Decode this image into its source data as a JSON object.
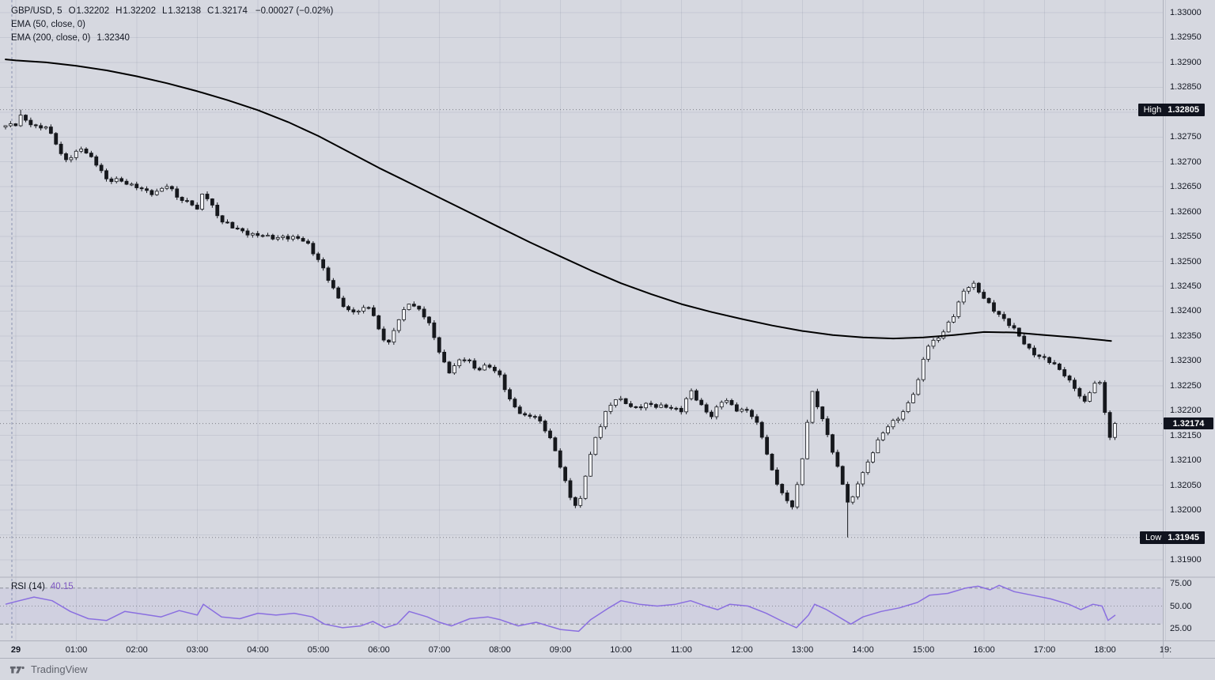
{
  "header": {
    "symbol": "GBP/USD, 5",
    "ohlc": {
      "o_label": "O",
      "o": "1.32202",
      "h_label": "H",
      "h": "1.32202",
      "l_label": "L",
      "l": "1.32138",
      "c_label": "C",
      "c": "1.32174",
      "change": "−0.00027 (−0.02%)"
    },
    "indicators": [
      {
        "name": "EMA (50, close, 0)",
        "value": ""
      },
      {
        "name": "EMA (200, close, 0)",
        "value": "1.32340"
      }
    ]
  },
  "rsi_legend": {
    "name": "RSI (14)",
    "value": "40.15"
  },
  "badges": {
    "high_label": "High",
    "high_value": "1.32805",
    "low_label": "Low",
    "low_value": "1.31945",
    "last_price": "1.32174"
  },
  "price_axis": {
    "labels": [
      "1.33000",
      "1.32950",
      "1.32900",
      "1.32850",
      "1.32800",
      "1.32750",
      "1.32700",
      "1.32650",
      "1.32600",
      "1.32550",
      "1.32500",
      "1.32450",
      "1.32400",
      "1.32350",
      "1.32300",
      "1.32250",
      "1.32200",
      "1.32150",
      "1.32100",
      "1.32050",
      "1.32000",
      "1.31950",
      "1.31900"
    ]
  },
  "rsi_axis": {
    "labels": [
      "75.00",
      "50.00",
      "25.00"
    ],
    "values": [
      75,
      50,
      25
    ]
  },
  "time_axis": {
    "labels": [
      {
        "t": 0,
        "text": "29",
        "bold": true
      },
      {
        "t": 1,
        "text": "01:00"
      },
      {
        "t": 2,
        "text": "02:00"
      },
      {
        "t": 3,
        "text": "03:00"
      },
      {
        "t": 4,
        "text": "04:00"
      },
      {
        "t": 5,
        "text": "05:00"
      },
      {
        "t": 6,
        "text": "06:00"
      },
      {
        "t": 7,
        "text": "07:00"
      },
      {
        "t": 8,
        "text": "08:00"
      },
      {
        "t": 9,
        "text": "09:00"
      },
      {
        "t": 10,
        "text": "10:00"
      },
      {
        "t": 11,
        "text": "11:00"
      },
      {
        "t": 12,
        "text": "12:00"
      },
      {
        "t": 13,
        "text": "13:00"
      },
      {
        "t": 14,
        "text": "14:00"
      },
      {
        "t": 15,
        "text": "15:00"
      },
      {
        "t": 16,
        "text": "16:00"
      },
      {
        "t": 17,
        "text": "17:00"
      },
      {
        "t": 18,
        "text": "18:00"
      },
      {
        "t": 19,
        "text": "19:"
      }
    ]
  },
  "watermark": {
    "text": "TradingView"
  },
  "colors": {
    "background": "#d6d8e0",
    "grid": "rgba(94,102,126,0.13)",
    "border": "#aeb1bc",
    "candle": "#16181d",
    "candle_up_fill": "#f4f5f8",
    "ema200": "#000000",
    "rsi_line": "#8a6fe0",
    "rsi_band_fill": "rgba(138,111,224,0.08)",
    "rsi_band_line": "#8a8d98",
    "dotted_level": "rgba(22,24,32,0.45)",
    "session_line": "rgba(74,90,138,0.55)",
    "badge_bg": "#10131e",
    "axis_text": "#131722",
    "rsi_value": "#7e57c2"
  },
  "chart_data": {
    "type": "candlestick",
    "symbol": "GBP/USD",
    "interval_minutes": 5,
    "date": "29",
    "ohlc_last": {
      "open": 1.32202,
      "high": 1.32202,
      "low": 1.32138,
      "close": 1.32174,
      "change": -0.00027,
      "change_pct": -0.02
    },
    "session_high": 1.32805,
    "session_low": 1.31945,
    "ema200_last": 1.3234,
    "rsi_last": 40.15,
    "price_pane": {
      "ylim": [
        1.31865,
        1.33025
      ],
      "t_start": -0.17,
      "t_end": 18.17,
      "close_path": [
        [
          -0.17,
          1.3277
        ],
        [
          0.0,
          1.32778
        ],
        [
          0.08,
          1.32795
        ],
        [
          0.2,
          1.3278
        ],
        [
          0.35,
          1.32765
        ],
        [
          0.5,
          1.32772
        ],
        [
          0.65,
          1.32745
        ],
        [
          0.8,
          1.32698
        ],
        [
          0.95,
          1.32712
        ],
        [
          1.1,
          1.32732
        ],
        [
          1.3,
          1.327
        ],
        [
          1.5,
          1.32662
        ],
        [
          1.7,
          1.32668
        ],
        [
          1.9,
          1.3265
        ],
        [
          2.1,
          1.32645
        ],
        [
          2.3,
          1.32638
        ],
        [
          2.5,
          1.3265
        ],
        [
          2.7,
          1.32628
        ],
        [
          2.9,
          1.32618
        ],
        [
          3.0,
          1.326
        ],
        [
          3.1,
          1.3264
        ],
        [
          3.25,
          1.32612
        ],
        [
          3.4,
          1.32582
        ],
        [
          3.6,
          1.32565
        ],
        [
          3.8,
          1.3256
        ],
        [
          4.0,
          1.32552
        ],
        [
          4.2,
          1.32546
        ],
        [
          4.4,
          1.32552
        ],
        [
          4.6,
          1.32545
        ],
        [
          4.8,
          1.3254
        ],
        [
          5.0,
          1.32505
        ],
        [
          5.15,
          1.32465
        ],
        [
          5.3,
          1.3243
        ],
        [
          5.5,
          1.32402
        ],
        [
          5.7,
          1.32398
        ],
        [
          5.85,
          1.3241
        ],
        [
          6.0,
          1.32365
        ],
        [
          6.15,
          1.3233
        ],
        [
          6.3,
          1.32375
        ],
        [
          6.5,
          1.3242
        ],
        [
          6.65,
          1.32405
        ],
        [
          6.8,
          1.3238
        ],
        [
          7.0,
          1.3232
        ],
        [
          7.15,
          1.32278
        ],
        [
          7.3,
          1.32295
        ],
        [
          7.45,
          1.32305
        ],
        [
          7.6,
          1.32285
        ],
        [
          7.8,
          1.3229
        ],
        [
          8.0,
          1.32268
        ],
        [
          8.2,
          1.32215
        ],
        [
          8.4,
          1.32185
        ],
        [
          8.6,
          1.3219
        ],
        [
          8.8,
          1.32155
        ],
        [
          9.0,
          1.32085
        ],
        [
          9.15,
          1.3203
        ],
        [
          9.3,
          1.32005
        ],
        [
          9.45,
          1.3209
        ],
        [
          9.6,
          1.3215
        ],
        [
          9.75,
          1.322
        ],
        [
          9.9,
          1.32225
        ],
        [
          10.05,
          1.32215
        ],
        [
          10.2,
          1.32205
        ],
        [
          10.4,
          1.32215
        ],
        [
          10.6,
          1.32205
        ],
        [
          10.8,
          1.3221
        ],
        [
          11.0,
          1.322
        ],
        [
          11.15,
          1.32238
        ],
        [
          11.3,
          1.32215
        ],
        [
          11.5,
          1.3219
        ],
        [
          11.7,
          1.32222
        ],
        [
          11.9,
          1.32205
        ],
        [
          12.1,
          1.322
        ],
        [
          12.3,
          1.3216
        ],
        [
          12.5,
          1.3208
        ],
        [
          12.7,
          1.3202
        ],
        [
          12.85,
          1.32005
        ],
        [
          13.0,
          1.3211
        ],
        [
          13.15,
          1.3224
        ],
        [
          13.3,
          1.3219
        ],
        [
          13.5,
          1.3212
        ],
        [
          13.65,
          1.3206
        ],
        [
          13.78,
          1.32
        ],
        [
          13.9,
          1.3205
        ],
        [
          14.05,
          1.3209
        ],
        [
          14.2,
          1.3213
        ],
        [
          14.4,
          1.32165
        ],
        [
          14.6,
          1.3219
        ],
        [
          14.75,
          1.32215
        ],
        [
          14.9,
          1.3225
        ],
        [
          15.05,
          1.3233
        ],
        [
          15.2,
          1.32345
        ],
        [
          15.35,
          1.3236
        ],
        [
          15.5,
          1.3239
        ],
        [
          15.65,
          1.3244
        ],
        [
          15.8,
          1.3246
        ],
        [
          15.95,
          1.3243
        ],
        [
          16.1,
          1.3241
        ],
        [
          16.3,
          1.3239
        ],
        [
          16.5,
          1.3236
        ],
        [
          16.7,
          1.3233
        ],
        [
          16.9,
          1.3231
        ],
        [
          17.1,
          1.32295
        ],
        [
          17.3,
          1.3228
        ],
        [
          17.5,
          1.32245
        ],
        [
          17.65,
          1.3221
        ],
        [
          17.8,
          1.32255
        ],
        [
          17.95,
          1.3226
        ],
        [
          18.05,
          1.3213
        ],
        [
          18.17,
          1.32174
        ]
      ],
      "ema200_path": [
        [
          -0.17,
          1.32906
        ],
        [
          0,
          1.32904
        ],
        [
          0.5,
          1.329
        ],
        [
          1,
          1.32893
        ],
        [
          1.5,
          1.32884
        ],
        [
          2,
          1.32872
        ],
        [
          2.5,
          1.32858
        ],
        [
          3,
          1.32842
        ],
        [
          3.5,
          1.32824
        ],
        [
          4,
          1.32804
        ],
        [
          4.5,
          1.3278
        ],
        [
          5,
          1.32752
        ],
        [
          5.5,
          1.3272
        ],
        [
          6,
          1.32688
        ],
        [
          6.5,
          1.32658
        ],
        [
          7,
          1.32628
        ],
        [
          7.5,
          1.32598
        ],
        [
          8,
          1.32568
        ],
        [
          8.5,
          1.32538
        ],
        [
          9,
          1.3251
        ],
        [
          9.5,
          1.32482
        ],
        [
          10,
          1.32456
        ],
        [
          10.5,
          1.32434
        ],
        [
          11,
          1.32414
        ],
        [
          11.5,
          1.32398
        ],
        [
          12,
          1.32384
        ],
        [
          12.5,
          1.32371
        ],
        [
          13,
          1.3236
        ],
        [
          13.5,
          1.32352
        ],
        [
          14,
          1.32347
        ],
        [
          14.5,
          1.32345
        ],
        [
          15,
          1.32347
        ],
        [
          15.5,
          1.32352
        ],
        [
          16,
          1.32358
        ],
        [
          16.5,
          1.32357
        ],
        [
          17,
          1.32352
        ],
        [
          17.5,
          1.32347
        ],
        [
          18.1,
          1.3234
        ]
      ],
      "extremes": {
        "high": {
          "t": 0.08,
          "value": 1.32805
        },
        "low": {
          "t": 13.78,
          "value": 1.31945
        }
      },
      "last_close": 1.32174
    },
    "rsi_pane": {
      "ylim": [
        15,
        85
      ],
      "bands": [
        70,
        30
      ],
      "mid": 50,
      "path": [
        [
          -0.17,
          52
        ],
        [
          0,
          55
        ],
        [
          0.3,
          60
        ],
        [
          0.6,
          56
        ],
        [
          0.9,
          44
        ],
        [
          1.2,
          36
        ],
        [
          1.5,
          34
        ],
        [
          1.8,
          44
        ],
        [
          2.1,
          41
        ],
        [
          2.4,
          38
        ],
        [
          2.7,
          45
        ],
        [
          3.0,
          40
        ],
        [
          3.1,
          52
        ],
        [
          3.4,
          38
        ],
        [
          3.7,
          36
        ],
        [
          4.0,
          42
        ],
        [
          4.3,
          40
        ],
        [
          4.6,
          42
        ],
        [
          4.9,
          38
        ],
        [
          5.1,
          30
        ],
        [
          5.4,
          26
        ],
        [
          5.7,
          28
        ],
        [
          5.9,
          33
        ],
        [
          6.1,
          26
        ],
        [
          6.3,
          30
        ],
        [
          6.5,
          44
        ],
        [
          6.8,
          38
        ],
        [
          7.0,
          32
        ],
        [
          7.2,
          28
        ],
        [
          7.5,
          36
        ],
        [
          7.8,
          38
        ],
        [
          8.0,
          35
        ],
        [
          8.3,
          28
        ],
        [
          8.6,
          32
        ],
        [
          8.8,
          28
        ],
        [
          9.0,
          24
        ],
        [
          9.3,
          22
        ],
        [
          9.5,
          35
        ],
        [
          9.8,
          48
        ],
        [
          10.0,
          56
        ],
        [
          10.3,
          52
        ],
        [
          10.6,
          50
        ],
        [
          10.9,
          52
        ],
        [
          11.15,
          56
        ],
        [
          11.4,
          50
        ],
        [
          11.6,
          46
        ],
        [
          11.8,
          52
        ],
        [
          12.1,
          50
        ],
        [
          12.4,
          42
        ],
        [
          12.7,
          32
        ],
        [
          12.9,
          26
        ],
        [
          13.1,
          40
        ],
        [
          13.2,
          52
        ],
        [
          13.4,
          46
        ],
        [
          13.6,
          38
        ],
        [
          13.8,
          30
        ],
        [
          14.0,
          38
        ],
        [
          14.3,
          44
        ],
        [
          14.6,
          48
        ],
        [
          14.9,
          54
        ],
        [
          15.1,
          62
        ],
        [
          15.4,
          64
        ],
        [
          15.7,
          70
        ],
        [
          15.9,
          72
        ],
        [
          16.1,
          68
        ],
        [
          16.25,
          73
        ],
        [
          16.5,
          66
        ],
        [
          16.8,
          62
        ],
        [
          17.1,
          58
        ],
        [
          17.4,
          52
        ],
        [
          17.6,
          46
        ],
        [
          17.8,
          52
        ],
        [
          17.95,
          50
        ],
        [
          18.05,
          34
        ],
        [
          18.17,
          40
        ]
      ],
      "last": 40.15
    }
  }
}
